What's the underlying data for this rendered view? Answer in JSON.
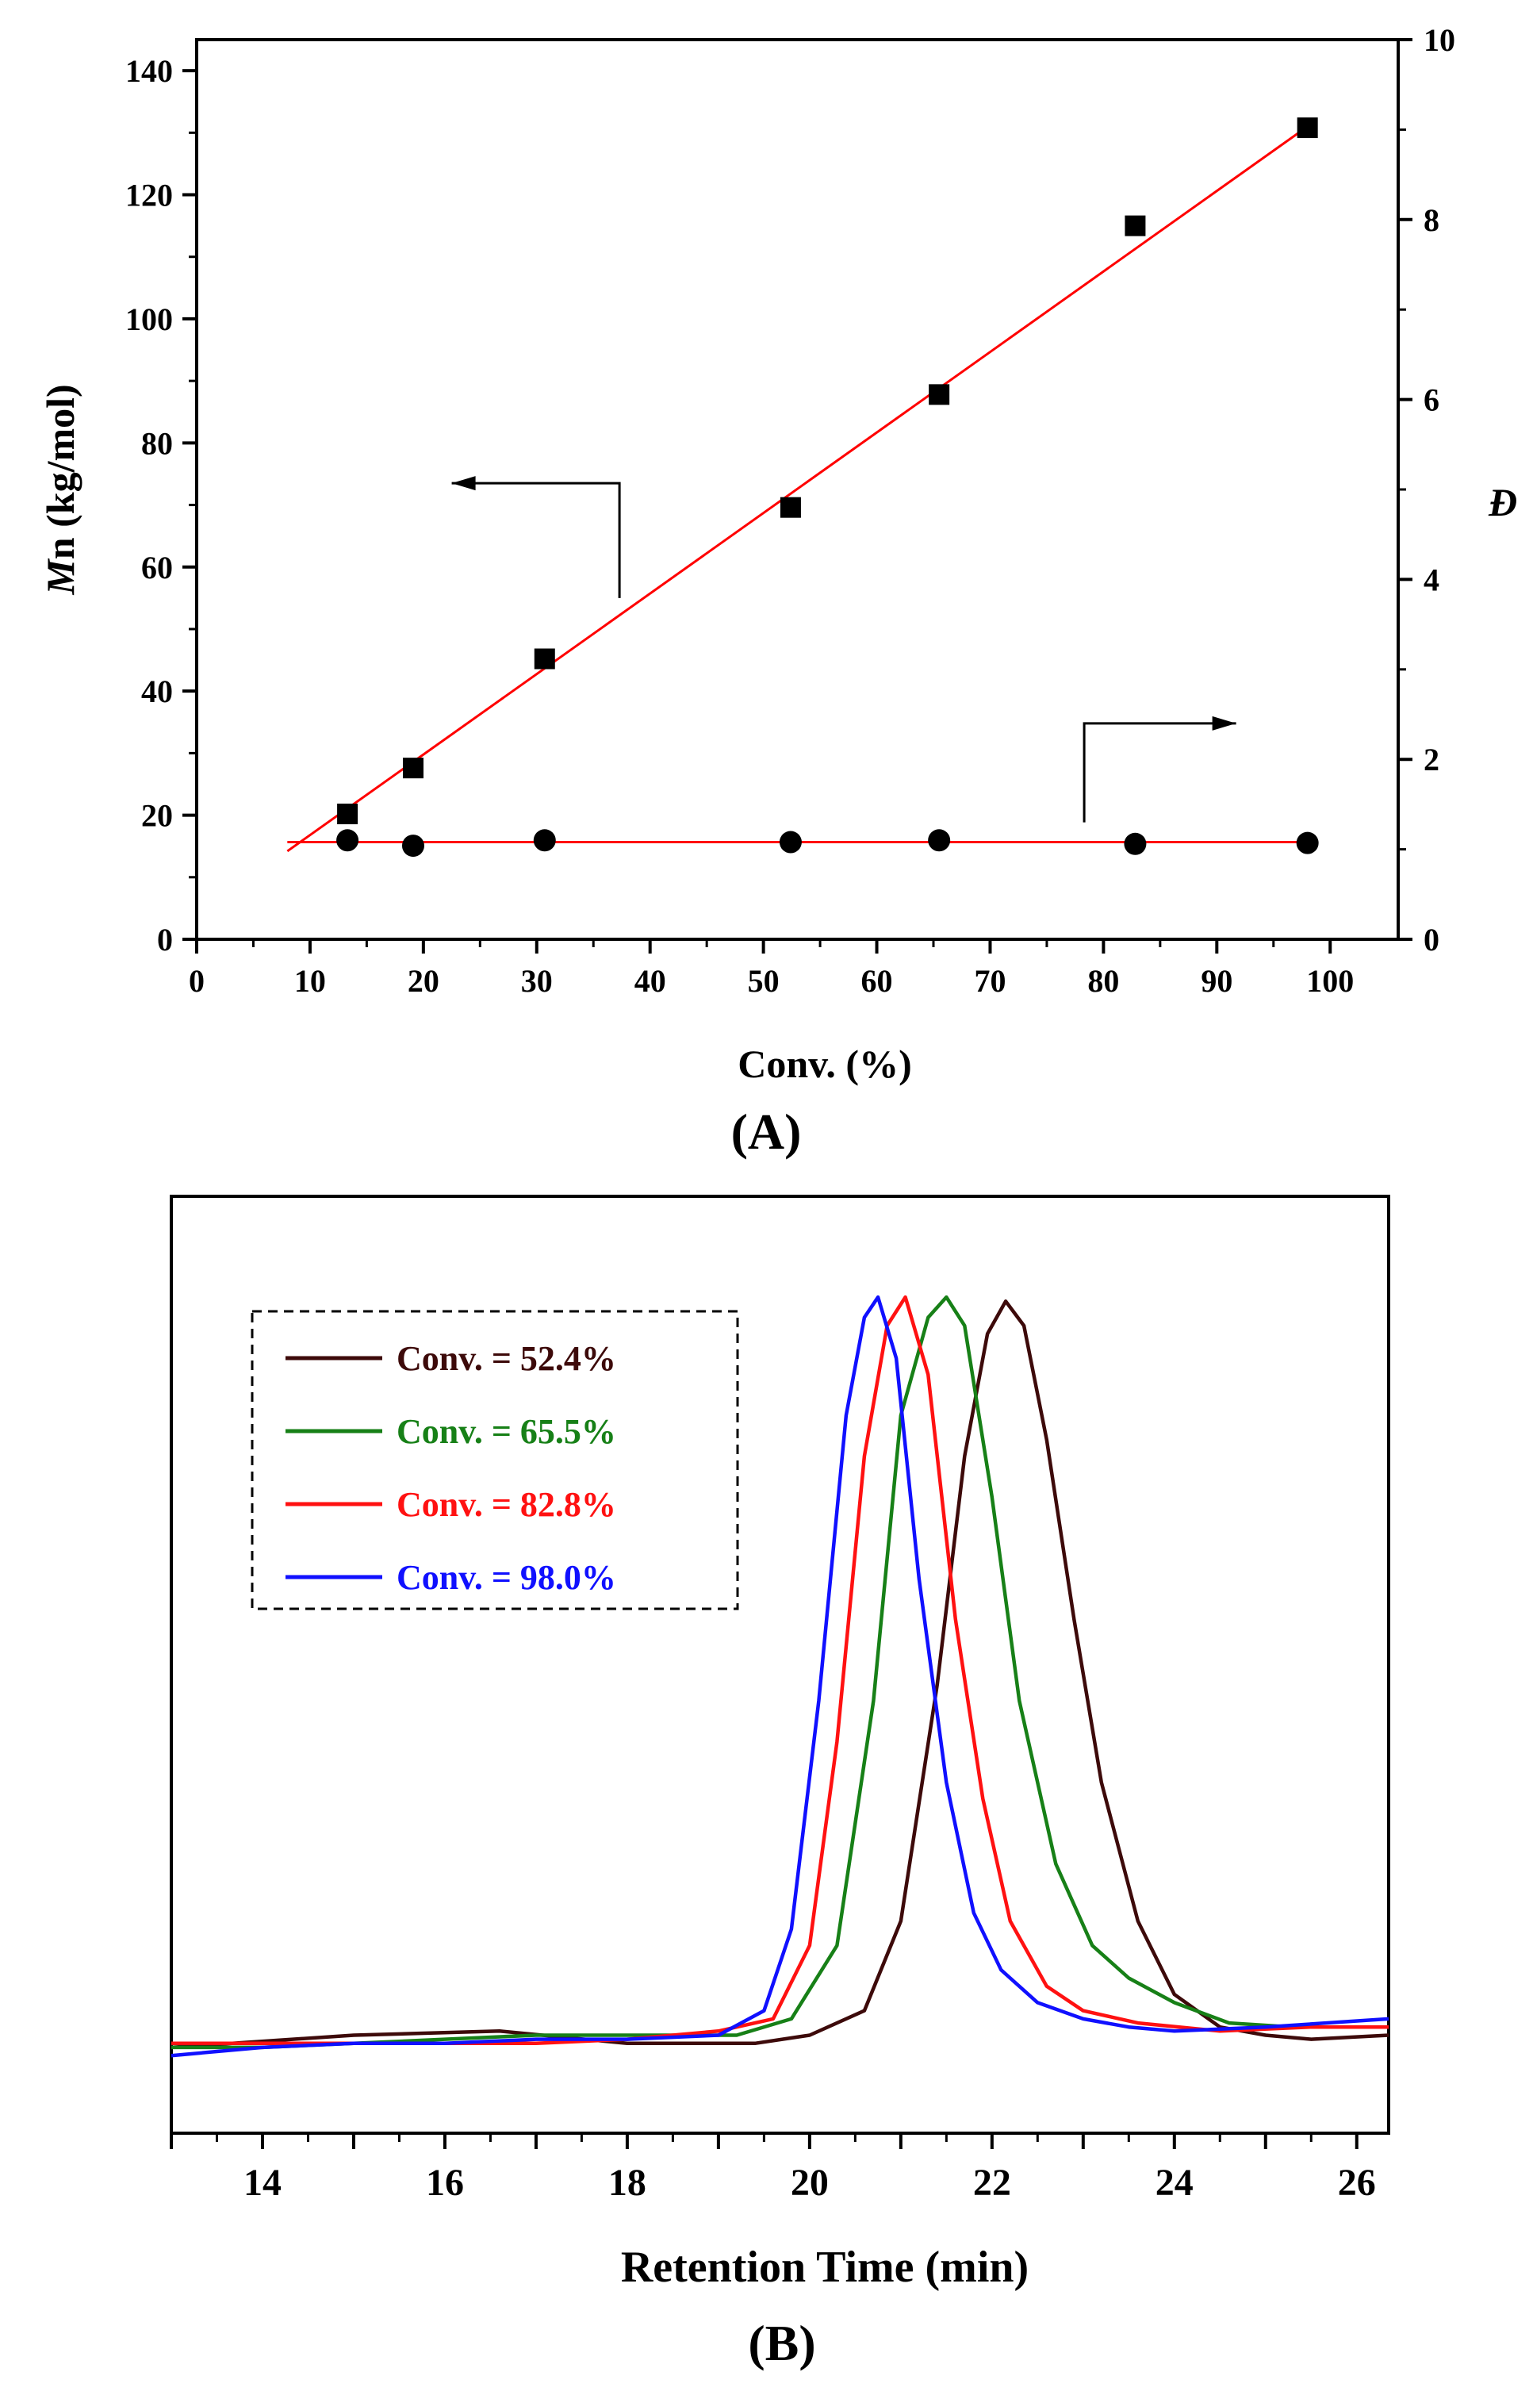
{
  "panel_a": {
    "panel_label": "(A)",
    "ylabel_italic": "M",
    "ylabel_rest": "n (kg/mol)",
    "y2label": "Đ",
    "xlabel": "Conv. (%)"
  },
  "panel_b": {
    "panel_label": "(B)",
    "xlabel": "Retention Time (min)"
  },
  "chart_data": [
    {
      "type": "scatter",
      "title": "(A)",
      "xlabel": "Conv. (%)",
      "ylabel": "Mn (kg/mol)",
      "y2label": "Đ",
      "xlim": [
        0,
        106
      ],
      "ylim": [
        0,
        145
      ],
      "y2lim": [
        0,
        10
      ],
      "xticks": [
        0,
        10,
        20,
        30,
        40,
        50,
        60,
        70,
        80,
        90,
        100
      ],
      "yticks": [
        0,
        20,
        40,
        60,
        80,
        100,
        120,
        140
      ],
      "y2ticks": [
        0,
        2,
        4,
        6,
        8,
        10
      ],
      "series": [
        {
          "name": "Mn",
          "axis": "left",
          "marker": "square",
          "x": [
            13.3,
            19.1,
            30.7,
            52.4,
            65.5,
            82.8,
            98.0
          ],
          "y": [
            20.2,
            27.6,
            45.2,
            69.6,
            87.8,
            115.0,
            130.8
          ]
        },
        {
          "name": "Đ",
          "axis": "right",
          "marker": "circle",
          "x": [
            13.3,
            19.1,
            30.7,
            52.4,
            65.5,
            82.8,
            98.0
          ],
          "y": [
            1.1,
            1.04,
            1.1,
            1.08,
            1.1,
            1.06,
            1.07
          ]
        }
      ],
      "fit_lines": [
        {
          "axis": "left",
          "x": [
            8,
            98
          ],
          "y": [
            14.2,
            131.0
          ],
          "color": "#ff0000"
        },
        {
          "axis": "right",
          "x": [
            8,
            98
          ],
          "y": [
            1.08,
            1.08
          ],
          "color": "#ff0000"
        }
      ],
      "annotations": [
        {
          "arrow": "left",
          "axis": "left",
          "from": [
            37.3,
            55
          ],
          "corner": [
            37.3,
            73.5
          ],
          "to": [
            22.5,
            73.5
          ]
        },
        {
          "arrow": "right",
          "axis": "right",
          "from": [
            78.3,
            1.3
          ],
          "corner": [
            78.3,
            2.4
          ],
          "to": [
            91.7,
            2.4
          ]
        }
      ]
    },
    {
      "type": "line",
      "title": "(B)",
      "xlabel": "Retention Time (min)",
      "ylabel": "",
      "xlim": [
        13.0,
        26.35
      ],
      "ylim": [
        0,
        1.0
      ],
      "xticks": [
        14,
        16,
        18,
        20,
        22,
        24,
        26
      ],
      "legend_position": "top-left",
      "series": [
        {
          "name": "Conv. = 52.4%",
          "color": "#3d0a0a",
          "x": [
            13.0,
            15.0,
            16.6,
            18.0,
            19.4,
            20.0,
            20.6,
            21.0,
            21.4,
            21.7,
            21.95,
            22.15,
            22.35,
            22.6,
            22.9,
            23.2,
            23.6,
            24.0,
            24.5,
            25.0,
            25.5,
            26.35
          ],
          "y": [
            0.075,
            0.09,
            0.095,
            0.08,
            0.08,
            0.09,
            0.12,
            0.23,
            0.52,
            0.8,
            0.95,
            0.99,
            0.96,
            0.82,
            0.6,
            0.4,
            0.23,
            0.14,
            0.1,
            0.09,
            0.085,
            0.09
          ]
        },
        {
          "name": "Conv. = 65.5%",
          "color": "#178017",
          "x": [
            13.0,
            14.0,
            15.0,
            16.0,
            17.0,
            18.0,
            19.2,
            19.8,
            20.3,
            20.7,
            21.0,
            21.3,
            21.5,
            21.7,
            22.0,
            22.3,
            22.7,
            23.1,
            23.5,
            24.0,
            24.6,
            25.3,
            26.35
          ],
          "y": [
            0.075,
            0.075,
            0.08,
            0.085,
            0.09,
            0.09,
            0.09,
            0.11,
            0.2,
            0.5,
            0.85,
            0.97,
            0.995,
            0.96,
            0.75,
            0.5,
            0.3,
            0.2,
            0.16,
            0.13,
            0.105,
            0.1,
            0.1
          ]
        },
        {
          "name": "Conv. = 82.8%",
          "color": "#ff1111",
          "x": [
            13.0,
            14.0,
            15.0,
            16.0,
            17.0,
            18.0,
            19.0,
            19.6,
            20.0,
            20.3,
            20.6,
            20.85,
            21.05,
            21.3,
            21.6,
            21.9,
            22.2,
            22.6,
            23.0,
            23.6,
            24.5,
            25.5,
            26.35
          ],
          "y": [
            0.08,
            0.08,
            0.08,
            0.08,
            0.08,
            0.085,
            0.095,
            0.11,
            0.2,
            0.45,
            0.8,
            0.96,
            0.995,
            0.9,
            0.6,
            0.38,
            0.23,
            0.15,
            0.12,
            0.105,
            0.095,
            0.1,
            0.1
          ]
        },
        {
          "name": "Conv. = 98.0%",
          "color": "#1010ff",
          "x": [
            13.0,
            14.0,
            15.0,
            16.0,
            17.0,
            18.0,
            19.0,
            19.5,
            19.8,
            20.1,
            20.4,
            20.6,
            20.75,
            20.95,
            21.2,
            21.5,
            21.8,
            22.1,
            22.5,
            23.0,
            23.5,
            24.0,
            25.0,
            26.35
          ],
          "y": [
            0.065,
            0.075,
            0.08,
            0.08,
            0.085,
            0.085,
            0.09,
            0.12,
            0.22,
            0.5,
            0.85,
            0.97,
            0.995,
            0.92,
            0.65,
            0.4,
            0.24,
            0.17,
            0.13,
            0.11,
            0.1,
            0.095,
            0.1,
            0.11
          ]
        }
      ]
    }
  ]
}
